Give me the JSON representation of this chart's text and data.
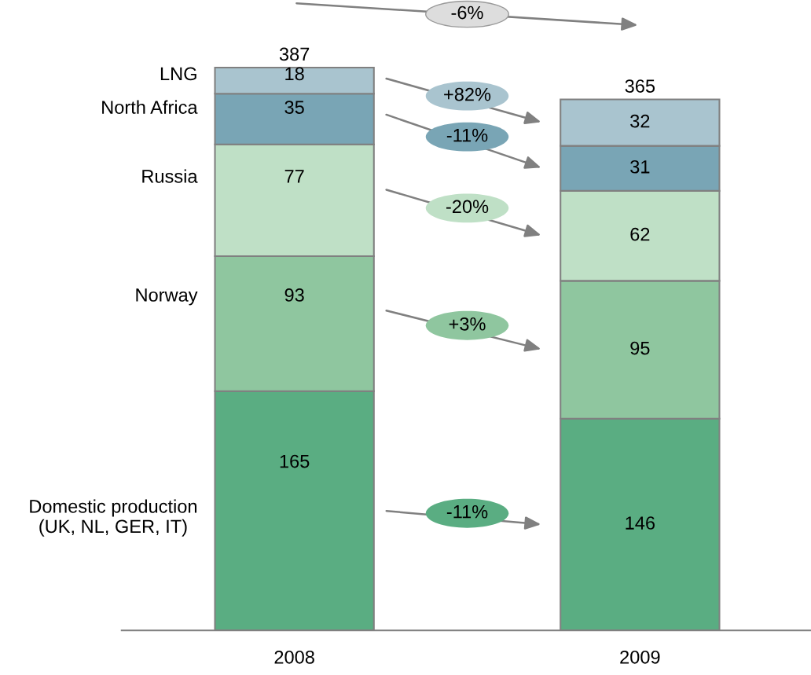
{
  "chart_data": {
    "type": "bar",
    "stacked": true,
    "categories": [
      "2008",
      "2009"
    ],
    "series": [
      {
        "name": "Domestic production\n(UK, NL, GER, IT)",
        "color": "#5aad82",
        "values": [
          165,
          146
        ]
      },
      {
        "name": "Norway",
        "color": "#8fc69f",
        "values": [
          93,
          95
        ]
      },
      {
        "name": "Russia",
        "color": "#bfe0c6",
        "values": [
          77,
          62
        ]
      },
      {
        "name": "North Africa",
        "color": "#79a5b5",
        "values": [
          35,
          31
        ]
      },
      {
        "name": "LNG",
        "color": "#a9c4cf",
        "values": [
          18,
          32
        ]
      }
    ],
    "data_labels": true,
    "totals": [
      "387",
      "365"
    ],
    "annotations": [
      "-6%",
      "+82%",
      "-11%",
      "-20%",
      "+3%",
      "-11%"
    ],
    "legend": "left",
    "tick_labels": "x",
    "grid": false
  }
}
